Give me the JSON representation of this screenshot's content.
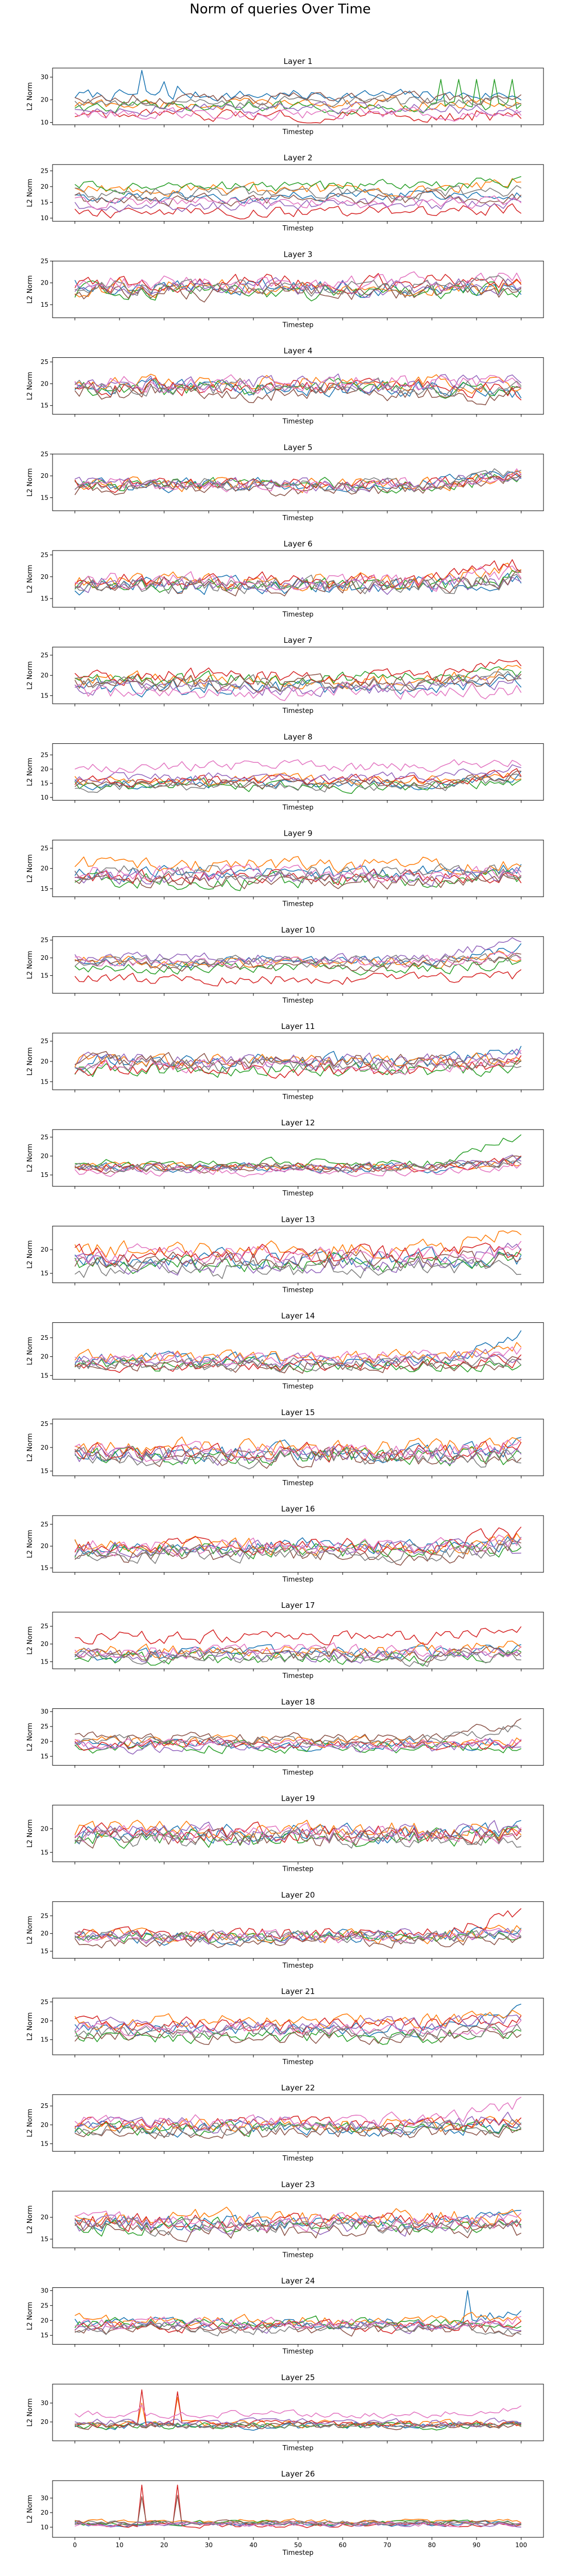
{
  "chart_data": {
    "type": "line",
    "title": "Norm of queries Over Time",
    "xlabel": "Timestep",
    "ylabel": "L2 Norm",
    "xlim": [
      0,
      100
    ],
    "xticks": [
      0,
      10,
      20,
      30,
      40,
      50,
      60,
      70,
      80,
      90,
      100
    ],
    "grid": false,
    "series_colors": [
      "#1f77b4",
      "#ff7f0e",
      "#2ca02c",
      "#d62728",
      "#9467bd",
      "#8c564b",
      "#e377c2",
      "#7f7f7f"
    ],
    "panels": [
      {
        "title": "Layer 1",
        "ylim": [
          9,
          34
        ],
        "yticks": [
          10,
          20,
          30
        ],
        "base": [
          22,
          18,
          17,
          13,
          16,
          21,
          14,
          19
        ],
        "amp": 4,
        "trend": [
          0,
          0,
          0,
          0,
          0,
          0,
          0,
          0
        ],
        "spikes": [
          {
            "series": 0,
            "x": 15,
            "y": 33
          },
          {
            "series": 0,
            "x": 20,
            "y": 28
          },
          {
            "series": 0,
            "x": 23,
            "y": 26
          },
          {
            "series": 2,
            "x": 82,
            "y": 29
          },
          {
            "series": 2,
            "x": 86,
            "y": 29
          },
          {
            "series": 2,
            "x": 90,
            "y": 29
          },
          {
            "series": 2,
            "x": 94,
            "y": 29
          },
          {
            "series": 2,
            "x": 98,
            "y": 29
          },
          {
            "series": 3,
            "x": 85,
            "y": 11
          },
          {
            "series": 3,
            "x": 89,
            "y": 11
          },
          {
            "series": 3,
            "x": 93,
            "y": 11
          }
        ]
      },
      {
        "title": "Layer 2",
        "ylim": [
          9,
          27
        ],
        "yticks": [
          10,
          15,
          20,
          25
        ],
        "base": [
          17,
          19,
          20,
          12,
          14,
          16,
          15,
          18
        ],
        "amp": 3,
        "trend": [
          1,
          3,
          2,
          1,
          1,
          1,
          1,
          1
        ],
        "spikes": []
      },
      {
        "title": "Layer 3",
        "ylim": [
          12,
          25
        ],
        "yticks": [
          15,
          20,
          25
        ],
        "base": [
          19,
          19,
          18,
          20,
          19,
          18,
          20,
          19
        ],
        "amp": 3,
        "trend": [
          0,
          1,
          0,
          1,
          1,
          0,
          1,
          0
        ],
        "spikes": []
      },
      {
        "title": "Layer 4",
        "ylim": [
          13,
          26
        ],
        "yticks": [
          15,
          20,
          25
        ],
        "base": [
          19,
          20,
          19,
          19,
          20,
          18,
          20,
          19
        ],
        "amp": 3,
        "trend": [
          -1,
          0,
          -1,
          -1,
          0,
          -1,
          0,
          0
        ],
        "spikes": []
      },
      {
        "title": "Layer 5",
        "ylim": [
          12,
          25
        ],
        "yticks": [
          15,
          20,
          25
        ],
        "base": [
          18,
          18,
          18,
          18,
          18,
          17,
          18,
          18
        ],
        "amp": 2.5,
        "trend": [
          3,
          3,
          2,
          3,
          3,
          3,
          3,
          4
        ],
        "spikes": []
      },
      {
        "title": "Layer 6",
        "ylim": [
          13,
          26
        ],
        "yticks": [
          15,
          20,
          25
        ],
        "base": [
          18,
          19,
          18,
          19,
          18,
          18,
          19,
          18
        ],
        "amp": 3,
        "trend": [
          2,
          4,
          2,
          4,
          1,
          2,
          2,
          1
        ],
        "spikes": []
      },
      {
        "title": "Layer 7",
        "ylim": [
          13,
          27
        ],
        "yticks": [
          15,
          20,
          25
        ],
        "base": [
          17,
          19,
          19,
          20,
          17,
          18,
          16,
          18
        ],
        "amp": 3,
        "trend": [
          2,
          3,
          2,
          4,
          2,
          2,
          1,
          2
        ],
        "spikes": []
      },
      {
        "title": "Layer 8",
        "ylim": [
          9,
          29
        ],
        "yticks": [
          10,
          15,
          20,
          25
        ],
        "base": [
          15,
          16,
          14,
          16,
          17,
          15,
          21,
          14
        ],
        "amp": 3,
        "trend": [
          3,
          2,
          2,
          2,
          4,
          3,
          2,
          3
        ],
        "spikes": []
      },
      {
        "title": "Layer 9",
        "ylim": [
          13,
          27
        ],
        "yticks": [
          15,
          20,
          25
        ],
        "base": [
          19,
          21,
          17,
          18,
          18,
          17,
          19,
          19
        ],
        "amp": 3,
        "trend": [
          1,
          0,
          1,
          0,
          1,
          1,
          0,
          0
        ],
        "spikes": []
      },
      {
        "title": "Layer 10",
        "ylim": [
          10,
          26
        ],
        "yticks": [
          15,
          20,
          25
        ],
        "base": [
          19,
          19,
          17,
          14,
          20,
          18,
          19,
          19
        ],
        "amp": 2.5,
        "trend": [
          4,
          2,
          2,
          1,
          5,
          2,
          2,
          1
        ],
        "spikes": []
      },
      {
        "title": "Layer 11",
        "ylim": [
          13,
          27
        ],
        "yticks": [
          15,
          20,
          25
        ],
        "base": [
          20,
          20,
          18,
          18,
          20,
          20,
          19,
          19
        ],
        "amp": 3,
        "trend": [
          3,
          1,
          1,
          2,
          2,
          0,
          2,
          1
        ],
        "spikes": []
      },
      {
        "title": "Layer 12",
        "ylim": [
          12,
          27
        ],
        "yticks": [
          15,
          20,
          25
        ],
        "base": [
          17,
          17,
          18,
          17,
          17,
          17,
          16,
          17
        ],
        "amp": 2,
        "trend": [
          2,
          2,
          8,
          2,
          2,
          2,
          1,
          1
        ],
        "spikes": []
      },
      {
        "title": "Layer 13",
        "ylim": [
          13,
          25
        ],
        "yticks": [
          15,
          20
        ],
        "base": [
          18,
          20,
          17,
          19,
          17,
          18,
          19,
          16
        ],
        "amp": 3,
        "trend": [
          0,
          4,
          1,
          0,
          3,
          0,
          1,
          0
        ],
        "spikes": []
      },
      {
        "title": "Layer 14",
        "ylim": [
          14,
          29
        ],
        "yticks": [
          15,
          20,
          25
        ],
        "base": [
          19,
          20,
          18,
          18,
          19,
          18,
          20,
          18
        ],
        "amp": 3,
        "trend": [
          7,
          3,
          0,
          1,
          2,
          0,
          1,
          0
        ],
        "spikes": []
      },
      {
        "title": "Layer 15",
        "ylim": [
          14,
          26
        ],
        "yticks": [
          15,
          20,
          25
        ],
        "base": [
          19,
          20,
          18,
          19,
          18,
          18,
          19,
          18
        ],
        "amp": 3,
        "trend": [
          1,
          2,
          0,
          1,
          1,
          0,
          1,
          0
        ],
        "spikes": []
      },
      {
        "title": "Layer 16",
        "ylim": [
          14,
          27
        ],
        "yticks": [
          15,
          20,
          25
        ],
        "base": [
          20,
          20,
          19,
          20,
          19,
          18,
          20,
          18
        ],
        "amp": 3,
        "trend": [
          1,
          2,
          1,
          3,
          1,
          2,
          1,
          2
        ],
        "spikes": []
      },
      {
        "title": "Layer 17",
        "ylim": [
          13,
          29
        ],
        "yticks": [
          15,
          20,
          25
        ],
        "base": [
          17,
          18,
          16,
          22,
          17,
          17,
          18,
          16
        ],
        "amp": 3,
        "trend": [
          1,
          2,
          1,
          2,
          0,
          1,
          0,
          1
        ],
        "spikes": []
      },
      {
        "title": "Layer 18",
        "ylim": [
          12,
          31
        ],
        "yticks": [
          15,
          20,
          25,
          30
        ],
        "base": [
          19,
          20,
          18,
          19,
          18,
          21,
          19,
          20
        ],
        "amp": 3,
        "trend": [
          1,
          1,
          0,
          0,
          2,
          7,
          1,
          5
        ],
        "spikes": []
      },
      {
        "title": "Layer 19",
        "ylim": [
          13,
          25
        ],
        "yticks": [
          15,
          20
        ],
        "base": [
          19,
          20,
          18,
          19,
          19,
          18,
          19,
          18
        ],
        "amp": 3,
        "trend": [
          1,
          0,
          1,
          0,
          1,
          1,
          0,
          0
        ],
        "spikes": []
      },
      {
        "title": "Layer 20",
        "ylim": [
          13,
          29
        ],
        "yticks": [
          15,
          20,
          25
        ],
        "base": [
          19,
          19,
          19,
          20,
          19,
          18,
          19,
          19
        ],
        "amp": 3,
        "trend": [
          2,
          3,
          1,
          6,
          2,
          1,
          2,
          1
        ],
        "spikes": []
      },
      {
        "title": "Layer 21",
        "ylim": [
          11,
          26
        ],
        "yticks": [
          15,
          20,
          25
        ],
        "base": [
          18,
          20,
          16,
          19,
          19,
          16,
          18,
          17
        ],
        "amp": 3,
        "trend": [
          5,
          3,
          1,
          2,
          2,
          1,
          1,
          1
        ],
        "spikes": []
      },
      {
        "title": "Layer 22",
        "ylim": [
          13,
          28
        ],
        "yticks": [
          15,
          20,
          25
        ],
        "base": [
          19,
          20,
          19,
          20,
          20,
          18,
          21,
          19
        ],
        "amp": 3,
        "trend": [
          1,
          1,
          1,
          1,
          2,
          1,
          5,
          1
        ],
        "spikes": []
      },
      {
        "title": "Layer 23",
        "ylim": [
          13,
          26
        ],
        "yticks": [
          15,
          20
        ],
        "base": [
          19,
          20,
          18,
          19,
          18,
          17,
          19,
          18
        ],
        "amp": 3,
        "trend": [
          1,
          1,
          0,
          0,
          1,
          0,
          1,
          0
        ],
        "spikes": []
      },
      {
        "title": "Layer 24",
        "ylim": [
          12,
          31
        ],
        "yticks": [
          15,
          20,
          25,
          30
        ],
        "base": [
          19,
          20,
          19,
          18,
          18,
          17,
          19,
          17
        ],
        "amp": 3,
        "trend": [
          4,
          1,
          0,
          1,
          1,
          0,
          1,
          0
        ],
        "spikes": [
          {
            "series": 0,
            "x": 88,
            "y": 30
          }
        ]
      },
      {
        "title": "Layer 25",
        "ylim": [
          10,
          40
        ],
        "yticks": [
          20,
          30
        ],
        "base": [
          18,
          19,
          18,
          19,
          20,
          18,
          24,
          18
        ],
        "amp": 3,
        "trend": [
          0,
          0,
          0,
          0,
          0,
          0,
          4,
          0
        ],
        "spikes": [
          {
            "series": 3,
            "x": 15,
            "y": 37
          },
          {
            "series": 1,
            "x": 15,
            "y": 30
          },
          {
            "series": 3,
            "x": 23,
            "y": 36
          },
          {
            "series": 1,
            "x": 23,
            "y": 33
          },
          {
            "series": 6,
            "x": 15,
            "y": 29
          }
        ]
      },
      {
        "title": "Layer 26",
        "ylim": [
          3,
          42
        ],
        "yticks": [
          10,
          20,
          30
        ],
        "base": [
          12,
          14,
          13,
          11,
          12,
          13,
          12,
          13
        ],
        "amp": 2.5,
        "trend": [
          0,
          0,
          0,
          0,
          0,
          0,
          0,
          0
        ],
        "spikes": [
          {
            "series": 3,
            "x": 15,
            "y": 39
          },
          {
            "series": 3,
            "x": 23,
            "y": 39
          },
          {
            "series": 5,
            "x": 15,
            "y": 31
          },
          {
            "series": 5,
            "x": 23,
            "y": 32
          }
        ]
      }
    ]
  }
}
